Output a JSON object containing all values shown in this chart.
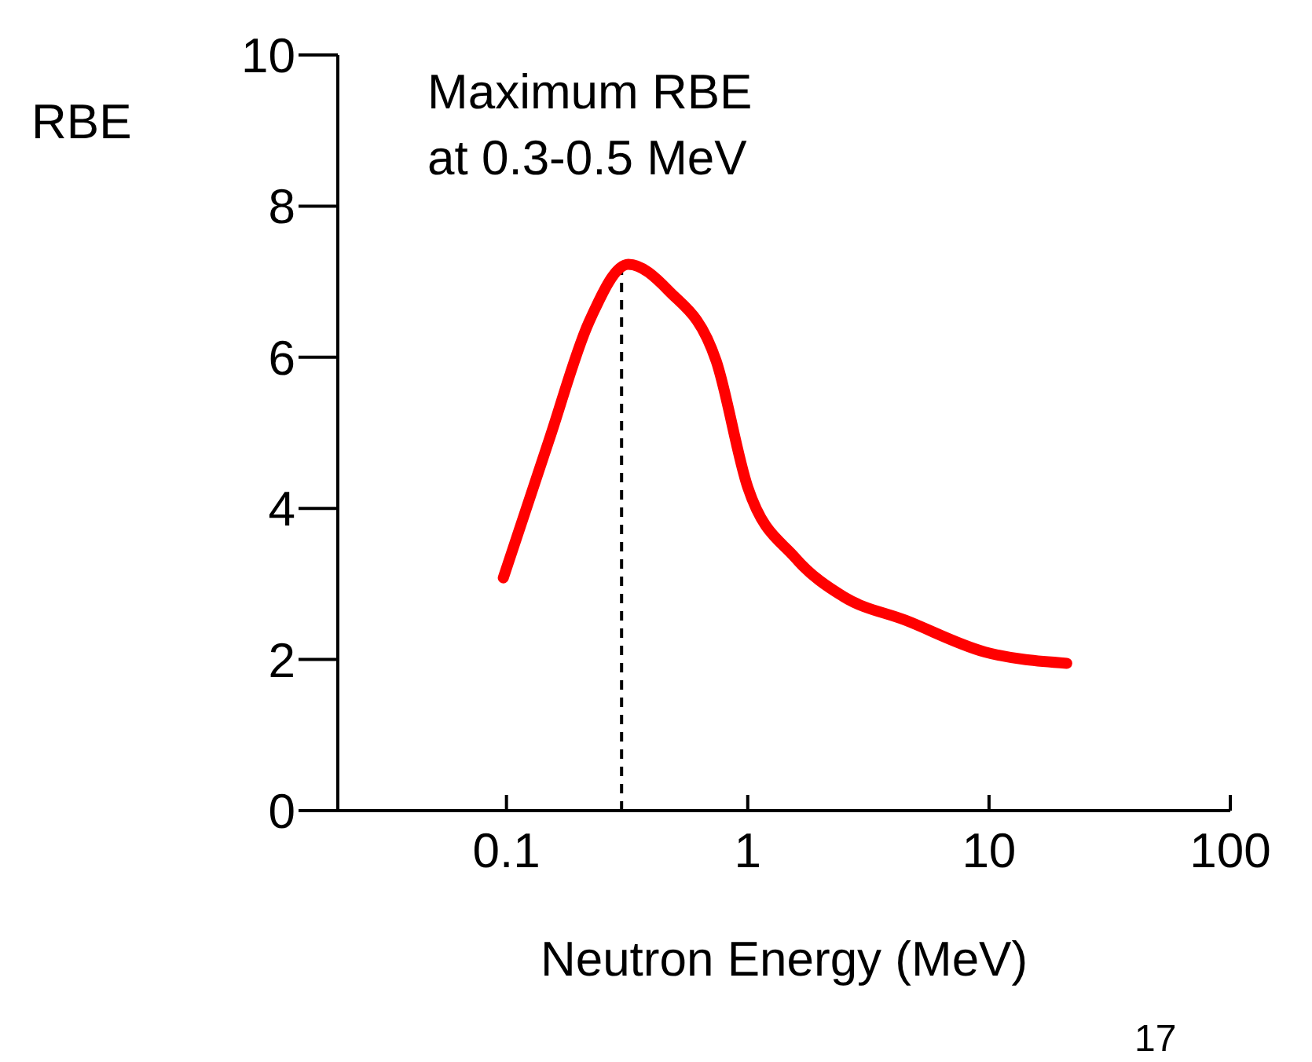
{
  "chart_data": {
    "type": "line",
    "xlabel": "Neutron Energy (MeV)",
    "ylabel": "RBE",
    "log": "x",
    "xlim": [
      0.02,
      100
    ],
    "xticks": [
      0.1,
      1,
      10,
      100
    ],
    "ylim": [
      0,
      10
    ],
    "yticks": [
      0,
      2,
      4,
      6,
      8,
      10
    ],
    "marker": "none",
    "line_style": "solid",
    "series": [
      {
        "color": "#ff0000",
        "x": [
          0.097,
          0.15,
          0.22,
          0.32,
          0.47,
          0.74,
          1.0,
          1.57,
          2.5,
          4.5,
          9.6,
          21
        ],
        "values": [
          3.08,
          4.9,
          6.47,
          7.23,
          6.88,
          5.95,
          4.28,
          3.35,
          2.83,
          2.52,
          2.1,
          1.95
        ]
      }
    ],
    "ref_lines": [
      {
        "axis": "x",
        "value": 0.3,
        "line_style": "dashed",
        "color": "#000000"
      }
    ],
    "annotations": [
      "Maximum RBE\nat 0.3-0.5 MeV",
      "17"
    ]
  }
}
